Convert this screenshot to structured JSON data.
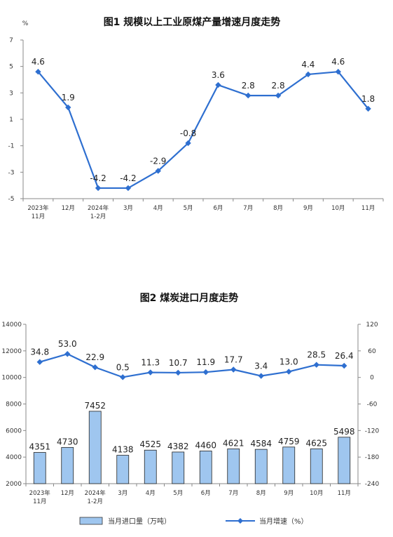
{
  "chart_data": [
    {
      "type": "line",
      "title": "图1  规模以上工业原煤产量增速月度走势",
      "ylabel": "%",
      "ylim": [
        -5,
        7
      ],
      "yticks": [
        7,
        5,
        3,
        1,
        -1,
        -3,
        -5
      ],
      "categories": [
        [
          "2023年",
          "11月"
        ],
        [
          "12月"
        ],
        [
          "2024年",
          "1-2月"
        ],
        [
          "3月"
        ],
        [
          "4月"
        ],
        [
          "5月"
        ],
        [
          "6月"
        ],
        [
          "7月"
        ],
        [
          "8月"
        ],
        [
          "9月"
        ],
        [
          "10月"
        ],
        [
          "11月"
        ]
      ],
      "series": [
        {
          "values": [
            4.6,
            1.9,
            -4.2,
            -4.2,
            -2.9,
            -0.8,
            3.6,
            2.8,
            2.8,
            4.4,
            4.6,
            1.8
          ],
          "labels": [
            "4.6",
            "1.9",
            "-4.2",
            "-4.2",
            "-2.9",
            "-0.8",
            "3.6",
            "2.8",
            "2.8",
            "4.4",
            "4.6",
            "1.8"
          ],
          "color": "#2e6fd0"
        }
      ],
      "grid": false
    },
    {
      "type": "bar+line",
      "title": "图2  煤炭进口月度走势",
      "categories": [
        [
          "2023年",
          "11月"
        ],
        [
          "12月"
        ],
        [
          "2024年",
          "1-2月"
        ],
        [
          "3月"
        ],
        [
          "4月"
        ],
        [
          "5月"
        ],
        [
          "6月"
        ],
        [
          "7月"
        ],
        [
          "8月"
        ],
        [
          "9月"
        ],
        [
          "10月"
        ],
        [
          "11月"
        ]
      ],
      "left_axis": {
        "ylim": [
          2000,
          14000
        ],
        "ticks": [
          14000,
          12000,
          10000,
          8000,
          6000,
          4000,
          2000
        ]
      },
      "right_axis": {
        "ylim": [
          -240,
          120
        ],
        "ticks": [
          120,
          60,
          0,
          -60,
          -120,
          -180,
          -240
        ]
      },
      "series": [
        {
          "name": "当月进口量（万吨）",
          "kind": "bar",
          "axis": "left",
          "values": [
            4351,
            4730,
            7452,
            4138,
            4525,
            4382,
            4460,
            4621,
            4584,
            4759,
            4625,
            5498
          ],
          "labels": [
            "4351",
            "4730",
            "7452",
            "4138",
            "4525",
            "4382",
            "4460",
            "4621",
            "4584",
            "4759",
            "4625",
            "5498"
          ],
          "color": "#9fc6ef"
        },
        {
          "name": "当月增速（%）",
          "kind": "line",
          "axis": "right",
          "values": [
            34.8,
            53.0,
            22.9,
            0.5,
            11.3,
            10.7,
            11.9,
            17.7,
            3.4,
            13.0,
            28.5,
            26.4
          ],
          "labels": [
            "34.8",
            "53.0",
            "22.9",
            "0.5",
            "11.3",
            "10.7",
            "11.9",
            "17.7",
            "3.4",
            "13.0",
            "28.5",
            "26.4"
          ],
          "color": "#2e6fd0"
        }
      ],
      "legend": "bottom",
      "grid": false
    }
  ]
}
